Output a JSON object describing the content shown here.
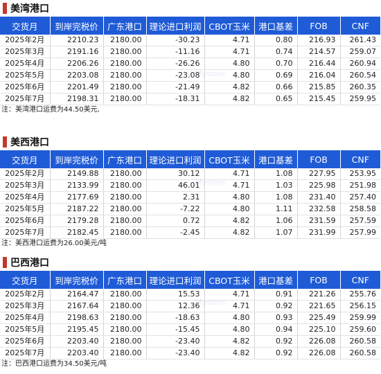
{
  "columns": [
    "交货月",
    "到岸完税价",
    "广东港口",
    "理论进口利润",
    "CBOT玉米",
    "港口基差",
    "FOB",
    "CNF"
  ],
  "sections": [
    {
      "title": "美湾港口",
      "rows": [
        [
          "2025年2月",
          "2210.23",
          "2180.00",
          "-30.23",
          "4.71",
          "0.80",
          "216.93",
          "261.43"
        ],
        [
          "2025年3月",
          "2191.16",
          "2180.00",
          "-11.16",
          "4.71",
          "0.74",
          "214.57",
          "259.07"
        ],
        [
          "2025年4月",
          "2206.26",
          "2180.00",
          "-26.26",
          "4.80",
          "0.70",
          "216.44",
          "260.94"
        ],
        [
          "2025年5月",
          "2203.08",
          "2180.00",
          "-23.08",
          "4.80",
          "0.69",
          "216.04",
          "260.54"
        ],
        [
          "2025年6月",
          "2201.49",
          "2180.00",
          "-21.49",
          "4.82",
          "0.66",
          "215.85",
          "260.35"
        ],
        [
          "2025年7月",
          "2198.31",
          "2180.00",
          "-18.31",
          "4.82",
          "0.65",
          "215.45",
          "259.95"
        ]
      ],
      "note": "注：美湾港口运费为44.50美元,"
    },
    {
      "title": "美西港口",
      "rows": [
        [
          "2025年2月",
          "2149.88",
          "2180.00",
          "30.12",
          "4.71",
          "1.08",
          "227.95",
          "253.95"
        ],
        [
          "2025年3月",
          "2133.99",
          "2180.00",
          "46.01",
          "4.71",
          "1.03",
          "225.98",
          "251.98"
        ],
        [
          "2025年4月",
          "2177.69",
          "2180.00",
          "2.31",
          "4.80",
          "1.08",
          "231.40",
          "257.40"
        ],
        [
          "2025年5月",
          "2187.22",
          "2180.00",
          "-7.22",
          "4.80",
          "1.11",
          "232.58",
          "258.58"
        ],
        [
          "2025年6月",
          "2179.28",
          "2180.00",
          "0.72",
          "4.82",
          "1.06",
          "231.59",
          "257.59"
        ],
        [
          "2025年7月",
          "2182.45",
          "2180.00",
          "-2.45",
          "4.82",
          "1.07",
          "231.99",
          "257.99"
        ]
      ],
      "note": "注：美西港口运费为26.00美元/吨"
    },
    {
      "title": "巴西港口",
      "rows": [
        [
          "2025年2月",
          "2164.47",
          "2180.00",
          "15.53",
          "4.71",
          "0.91",
          "221.26",
          "255.76"
        ],
        [
          "2025年3月",
          "2167.64",
          "2180.00",
          "12.36",
          "4.71",
          "0.92",
          "221.65",
          "256.15"
        ],
        [
          "2025年4月",
          "2198.63",
          "2180.00",
          "-18.63",
          "4.80",
          "0.93",
          "225.49",
          "259.99"
        ],
        [
          "2025年5月",
          "2195.45",
          "2180.00",
          "-15.45",
          "4.80",
          "0.94",
          "225.10",
          "259.60"
        ],
        [
          "2025年6月",
          "2203.40",
          "2180.00",
          "-23.40",
          "4.82",
          "0.92",
          "226.08",
          "260.58"
        ],
        [
          "2025年7月",
          "2203.40",
          "2180.00",
          "-23.40",
          "4.82",
          "0.92",
          "226.08",
          "260.58"
        ]
      ],
      "note": "注：巴西港口运费为34.50美元/吨"
    }
  ],
  "watermark": "Mysteel"
}
